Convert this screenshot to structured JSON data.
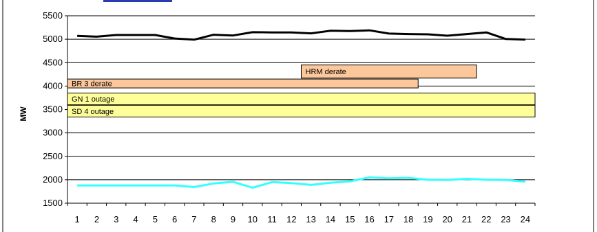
{
  "chart_data": {
    "type": "line",
    "title": "",
    "xlabel": "",
    "ylabel": "MW",
    "ylim": [
      1500,
      5500
    ],
    "yticks": [
      1500,
      2000,
      2500,
      3000,
      3500,
      4000,
      4500,
      5000,
      5500
    ],
    "grid": true,
    "legend": "none",
    "categories": [
      "1",
      "2",
      "3",
      "4",
      "5",
      "6",
      "7",
      "8",
      "9",
      "10",
      "11",
      "12",
      "13",
      "14",
      "15",
      "16",
      "17",
      "18",
      "19",
      "20",
      "21",
      "22",
      "23",
      "24"
    ],
    "series": [
      {
        "color": "#000000",
        "values": [
          5070,
          5055,
          5090,
          5090,
          5090,
          5015,
          4990,
          5095,
          5080,
          5150,
          5145,
          5145,
          5125,
          5180,
          5175,
          5190,
          5120,
          5110,
          5105,
          5075,
          5110,
          5145,
          5005,
          4990
        ]
      },
      {
        "color": "#33ffff",
        "values": [
          1880,
          1880,
          1880,
          1880,
          1880,
          1880,
          1845,
          1920,
          1955,
          1830,
          1950,
          1930,
          1890,
          1935,
          1965,
          2050,
          2030,
          2040,
          2000,
          1995,
          2020,
          2000,
          1995,
          1960
        ]
      }
    ],
    "outage_bars": [
      {
        "label": "HRM derate",
        "x_start": 12.5,
        "x_end": 21.5,
        "y_low": 4170,
        "y_high": 4450,
        "color": "#fbc79b"
      },
      {
        "label": "BR 3 derate",
        "x_start": 0.5,
        "x_end": 18.5,
        "y_low": 3960,
        "y_high": 4150,
        "color": "#fbc79b"
      },
      {
        "label": "GN 1 outage",
        "x_start": 0.5,
        "x_end": 24.5,
        "y_low": 3600,
        "y_high": 3850,
        "color": "#ffff99"
      },
      {
        "label": "SD 4 outage",
        "x_start": 0.5,
        "x_end": 24.5,
        "y_low": 3340,
        "y_high": 3590,
        "color": "#ffff99"
      }
    ]
  }
}
